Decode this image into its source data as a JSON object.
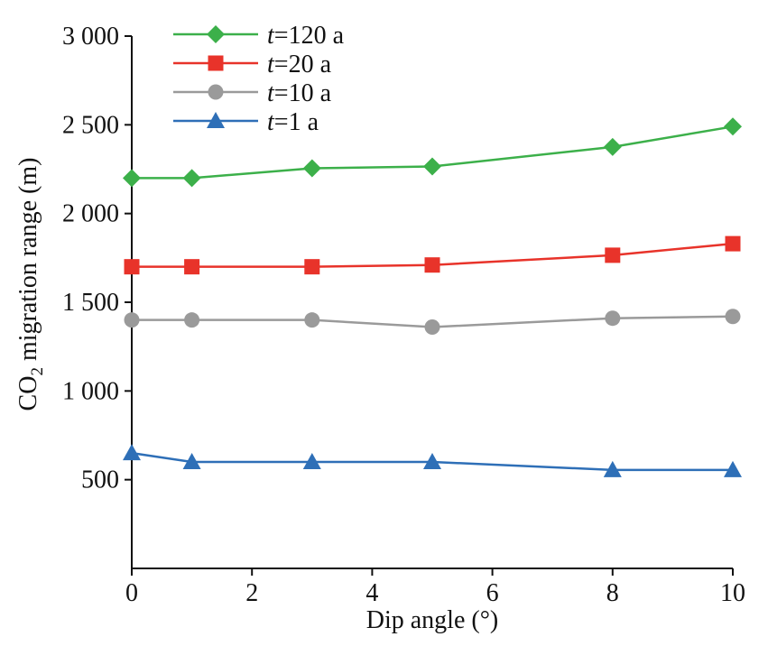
{
  "chart_data": {
    "type": "line",
    "x": [
      0,
      1,
      3,
      5,
      8,
      10
    ],
    "series": [
      {
        "name": "t=120 a",
        "legend_var": "t",
        "legend_rest": "=120 a",
        "color": "#3cb04a",
        "marker": "diamond",
        "values": [
          2200,
          2200,
          2255,
          2265,
          2375,
          2490
        ]
      },
      {
        "name": "t=20 a",
        "legend_var": "t",
        "legend_rest": "=20 a",
        "color": "#e8332a",
        "marker": "square",
        "values": [
          1700,
          1700,
          1700,
          1710,
          1765,
          1830
        ]
      },
      {
        "name": "t=10 a",
        "legend_var": "t",
        "legend_rest": "=10 a",
        "color": "#9a9a9a",
        "marker": "circle",
        "values": [
          1400,
          1400,
          1400,
          1360,
          1410,
          1420
        ]
      },
      {
        "name": "t=1 a",
        "legend_var": "t",
        "legend_rest": "=1 a",
        "color": "#2e6fb7",
        "marker": "triangle",
        "values": [
          650,
          600,
          600,
          600,
          555,
          555
        ]
      }
    ],
    "xlabel": "Dip angle (°)",
    "ylabel_parts": {
      "prefix": "CO",
      "subscript": "2",
      "suffix": " migration range (m)"
    },
    "xlim": [
      0,
      10
    ],
    "ylim": [
      0,
      3000
    ],
    "xticks": [
      0,
      2,
      4,
      6,
      8,
      10
    ],
    "xtick_labels": [
      "0",
      "2",
      "4",
      "6",
      "8",
      "10"
    ],
    "yticks": [
      500,
      1000,
      1500,
      2000,
      2500,
      3000
    ],
    "ytick_labels": [
      "500",
      "1 000",
      "1 500",
      "2 000",
      "2 500",
      "3 000"
    ],
    "grid": false,
    "legend_position": "top-left"
  }
}
